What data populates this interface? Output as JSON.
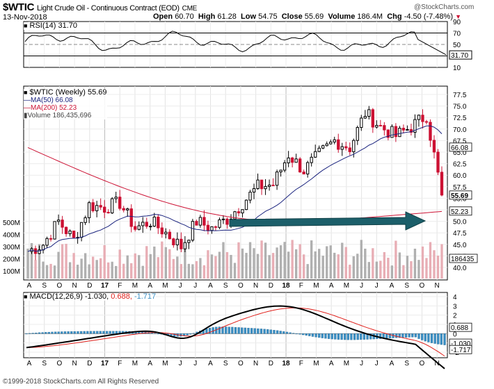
{
  "header": {
    "symbol": "$WTIC",
    "name": "Light Crude Oil - Continuous Contract (EOD)",
    "exchange": "CME",
    "date": "13-Nov-2018",
    "watermark": "@StockCharts.com",
    "open_label": "Open",
    "open": "60.70",
    "high_label": "High",
    "high": "61.28",
    "low_label": "Low",
    "low": "54.75",
    "close_label": "Close",
    "close": "55.69",
    "volume_label": "Volume",
    "volume": "186.4M",
    "chg_label": "Chg",
    "chg": "-4.50 (-7.48%)",
    "chg_arrow": "▼"
  },
  "rsi_panel": {
    "label": "RSI(14) 31.70",
    "axis_ticks": [
      "90",
      "70",
      "50",
      "30",
      "10"
    ],
    "current_tag": "31.70"
  },
  "price_panel": {
    "label_main": "$WTIC (Weekly) 55.69",
    "label_ma50": "MA(50) 66.08",
    "label_ma200": "MA(200) 52.23",
    "label_volume": "Volume 186,435,696",
    "price_ticks": [
      "77.5",
      "75.0",
      "72.5",
      "70.0",
      "67.5",
      "65.0",
      "62.5",
      "60.0",
      "57.5",
      "55.0",
      "52.5",
      "50.0",
      "47.5",
      "45.0",
      "42.5",
      "40.0"
    ],
    "volume_ticks": [
      "500M",
      "400M",
      "300M",
      "200M",
      "100M"
    ],
    "tag_close": "55.69",
    "tag_ma50": "66.08",
    "tag_ma200": "52.23",
    "tag_volume": "186435"
  },
  "macd_panel": {
    "label_prefix": "MACD(12,26,9)",
    "label_macd": "-1.030,",
    "label_signal": "0.688,",
    "label_hist": "-1.717",
    "axis_ticks": [
      "4",
      "3",
      "2",
      "1",
      "0",
      "-1",
      "-2"
    ],
    "tag_signal": "0.688",
    "tag_macd": "-1.030",
    "tag_hist": "-1.717"
  },
  "x_axis": {
    "labels": [
      "A",
      "S",
      "O",
      "N",
      "D",
      "17",
      "F",
      "M",
      "A",
      "M",
      "J",
      "J",
      "A",
      "S",
      "O",
      "N",
      "D",
      "18",
      "F",
      "M",
      "A",
      "M",
      "J",
      "J",
      "A",
      "S",
      "O",
      "N"
    ]
  },
  "colors": {
    "up_candle": "#000000",
    "down_candle": "#cc1133",
    "ma50": "#1a237e",
    "ma200": "#cc1133",
    "volume_up": "#b0b0b0",
    "volume_down": "#e8aeb5",
    "macd_line": "#000000",
    "signal_line": "#e0201b",
    "histogram": "#3b8fc4",
    "arrow": "#1c5f6a"
  },
  "annotation": {
    "type": "arrow",
    "direction": "right",
    "color_name": "dark teal"
  },
  "footer": {
    "copyright": "©1999-2018 StockCharts.com All Rights Reserved"
  },
  "chart_data": {
    "type": "candlestick",
    "interval": "weekly",
    "x": [
      "A",
      "S",
      "O",
      "N",
      "D",
      "17",
      "F",
      "M",
      "A",
      "M",
      "J",
      "J",
      "A",
      "S",
      "O",
      "N",
      "D",
      "18",
      "F",
      "M",
      "A",
      "M",
      "J",
      "J",
      "A",
      "S",
      "O",
      "N"
    ],
    "y_price_range": [
      40,
      77.5
    ],
    "close_approx": [
      43.5,
      45.0,
      50.0,
      46.0,
      53.5,
      53.0,
      54.0,
      48.5,
      50.0,
      47.5,
      44.5,
      50.0,
      48.5,
      50.5,
      54.0,
      57.5,
      58.0,
      64.5,
      61.0,
      64.5,
      67.5,
      66.0,
      73.5,
      70.5,
      68.5,
      70.5,
      73.0,
      55.69
    ],
    "ma50_end": 66.08,
    "ma200_end": 52.23,
    "rsi_end": 31.7,
    "macd_end": -1.03,
    "signal_end": 0.688,
    "histogram_end": -1.717,
    "volume_last": 186435696
  }
}
